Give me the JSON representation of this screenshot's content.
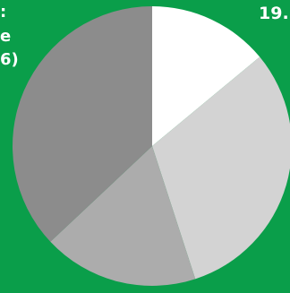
{
  "colors": {
    "background": "#0a9e4a",
    "text": "#ffffff",
    "slices": [
      "#ffffff",
      "#d3d3d3",
      "#acacac",
      "#8c8c8c"
    ]
  },
  "labels": {
    "left_line1": ":",
    "left_line2": "e",
    "left_line3": "6)",
    "top_right": "19."
  },
  "chart_data": {
    "type": "pie",
    "title": "",
    "categories": [
      "",
      "",
      "",
      ""
    ],
    "values": [
      14,
      31,
      18,
      37
    ],
    "start_angle_deg": 0,
    "direction": "clockwise",
    "legend": "none"
  }
}
